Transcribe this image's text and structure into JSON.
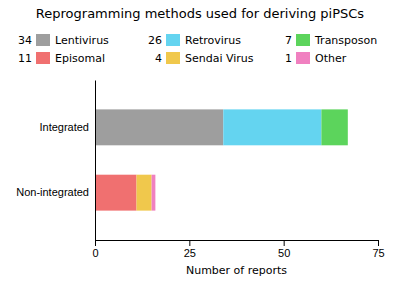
{
  "chart_data": {
    "type": "bar",
    "orientation": "horizontal",
    "stacked": true,
    "legend": "top",
    "title": "Reprogramming methods used for deriving piPSCs",
    "x_label": "Number of reports",
    "categories": [
      "Integrated",
      "Non-integrated"
    ],
    "series": [
      {
        "name": "Lentivirus",
        "color": "#9e9e9e",
        "values": [
          34,
          null
        ]
      },
      {
        "name": "Retrovirus",
        "color": "#64d4f0",
        "values": [
          26,
          null
        ]
      },
      {
        "name": "Transposon",
        "color": "#5cd45c",
        "values": [
          7,
          null
        ]
      },
      {
        "name": "Episomal",
        "color": "#f07070",
        "values": [
          null,
          11
        ]
      },
      {
        "name": "Sendai Virus",
        "color": "#f0c84c",
        "values": [
          null,
          4
        ]
      },
      {
        "name": "Other",
        "color": "#f080c0",
        "values": [
          null,
          1
        ]
      }
    ],
    "xlim": [
      0,
      75
    ],
    "xticks": [
      0,
      25,
      50,
      75
    ]
  }
}
